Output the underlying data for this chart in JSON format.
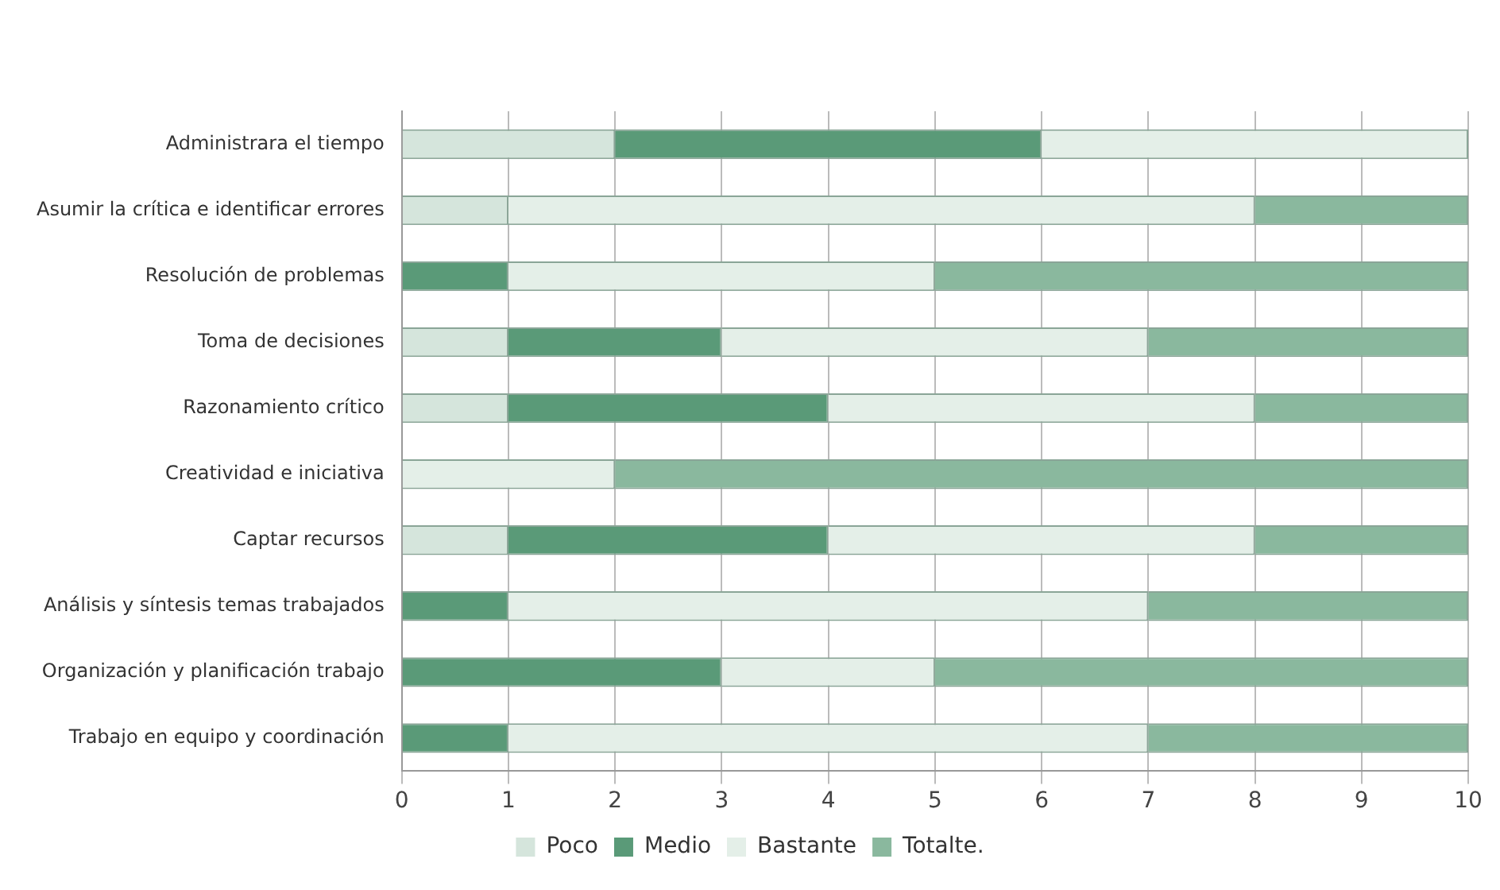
{
  "chart_data": {
    "type": "bar",
    "orientation": "horizontal",
    "stacked": true,
    "categories": [
      "Administrara el tiempo",
      "Asumir la crítica e identificar errores",
      "Resolución de problemas",
      "Toma de decisiones",
      "Razonamiento crítico",
      "Creatividad e iniciativa",
      "Captar recursos",
      "Análisis y síntesis temas trabajados",
      "Organización y planificación trabajo",
      "Trabajo en equipo y coordinación"
    ],
    "series": [
      {
        "name": "Poco",
        "color": "#d5e5dc",
        "values": [
          2,
          1,
          0,
          1,
          1,
          0,
          1,
          0,
          0,
          0
        ]
      },
      {
        "name": "Medio",
        "color": "#5a9a78",
        "values": [
          4,
          0,
          1,
          2,
          3,
          0,
          3,
          1,
          3,
          1
        ]
      },
      {
        "name": "Bastante",
        "color": "#e4efe8",
        "values": [
          4,
          7,
          4,
          4,
          4,
          2,
          4,
          6,
          2,
          6
        ]
      },
      {
        "name": "Totalte.",
        "color": "#8ab89e",
        "values": [
          0,
          2,
          5,
          3,
          2,
          8,
          2,
          3,
          5,
          3
        ]
      }
    ],
    "xlim": [
      0,
      10
    ],
    "xticks": [
      0,
      1,
      2,
      3,
      4,
      5,
      6,
      7,
      8,
      9,
      10
    ],
    "grid": "x",
    "legend": "bottom"
  }
}
